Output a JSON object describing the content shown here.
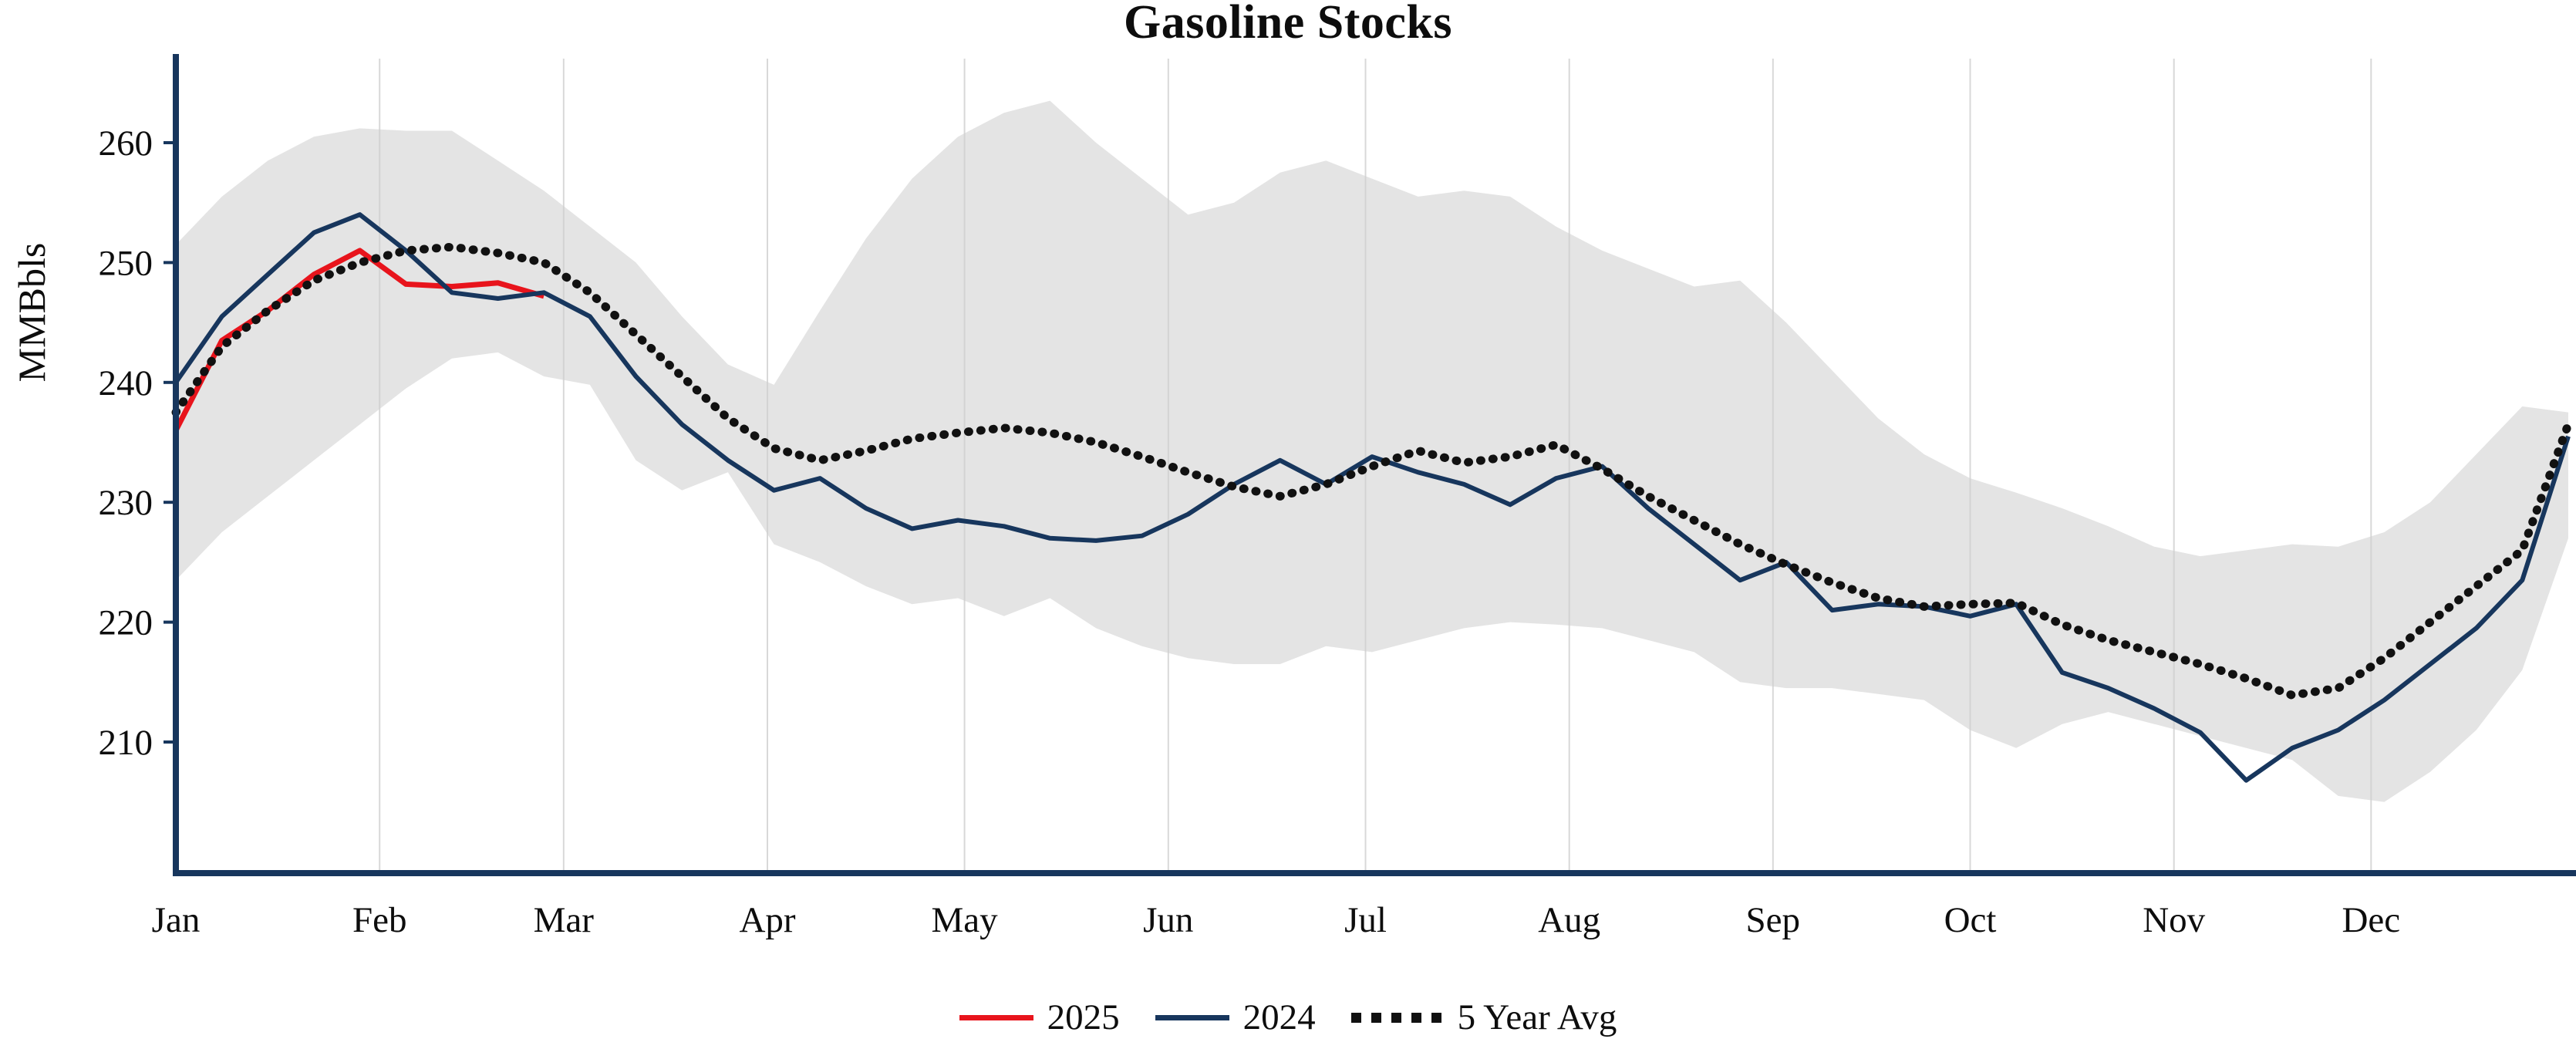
{
  "figure": {
    "title": "Gasoline Stocks",
    "y_axis_label": "MMBbls",
    "axis_color": "#17365d",
    "grid_color": "#cfcfcf",
    "text_color": "#0d0d0d"
  },
  "legend": {
    "items": [
      {
        "label": "2025",
        "color": "#e8141c",
        "style": "solid"
      },
      {
        "label": "2024",
        "color": "#17365d",
        "style": "solid"
      },
      {
        "label": "5 Year Avg",
        "color": "#111111",
        "style": "dotted"
      }
    ]
  },
  "chart_data": {
    "type": "line",
    "title": "Gasoline Stocks",
    "xlabel": "",
    "ylabel": "MMBbls",
    "ylim": [
      204,
      267
    ],
    "yticks": [
      210,
      220,
      230,
      240,
      250,
      260
    ],
    "x_unit": "week_of_year",
    "weeks_total": 53,
    "months": [
      "Jan",
      "Feb",
      "Mar",
      "Apr",
      "May",
      "Jun",
      "Jul",
      "Aug",
      "Sep",
      "Oct",
      "Nov",
      "Dec"
    ],
    "month_start_days": [
      1,
      32,
      60,
      91,
      121,
      152,
      182,
      213,
      244,
      274,
      305,
      335
    ],
    "grid": "vertical-month-lines",
    "legend_position": "bottom-center",
    "band": {
      "name": "5-year range",
      "color": "#e4e4e4",
      "upper": [
        251.5,
        255.5,
        258.5,
        260.5,
        261.2,
        261.0,
        261.0,
        258.5,
        256.0,
        253.0,
        250.0,
        245.5,
        241.5,
        239.8,
        246.0,
        252.0,
        257.0,
        260.5,
        262.5,
        263.5,
        260.0,
        257.0,
        254.0,
        255.0,
        257.5,
        258.5,
        257.0,
        255.5,
        256.0,
        255.5,
        253.0,
        251.0,
        249.5,
        248.0,
        248.5,
        245.0,
        241.0,
        237.0,
        234.0,
        232.0,
        230.8,
        229.5,
        228.0,
        226.3,
        225.5,
        226.0,
        226.5,
        226.3,
        227.5,
        230.0,
        234.0,
        238.0,
        237.5
      ],
      "lower": [
        223.5,
        227.5,
        230.5,
        233.5,
        236.5,
        239.5,
        242.0,
        242.5,
        240.5,
        239.8,
        233.5,
        231.0,
        232.5,
        226.5,
        225.0,
        223.0,
        221.5,
        222.0,
        220.5,
        222.0,
        219.5,
        218.0,
        217.0,
        216.5,
        216.5,
        218.0,
        217.5,
        218.5,
        219.5,
        220.0,
        219.8,
        219.5,
        218.5,
        217.5,
        215.0,
        214.5,
        214.5,
        214.0,
        213.5,
        211.0,
        209.5,
        211.5,
        212.5,
        211.5,
        210.5,
        209.5,
        208.5,
        205.5,
        205.0,
        207.5,
        211.0,
        216.0,
        227.0
      ]
    },
    "series": [
      {
        "name": "2025",
        "color": "#e8141c",
        "style": "solid",
        "stroke_width": 7,
        "start_week": 1,
        "values": [
          236.0,
          243.5,
          246.0,
          249.0,
          251.0,
          248.2,
          248.0,
          248.3,
          247.2
        ]
      },
      {
        "name": "2024",
        "color": "#17365d",
        "style": "solid",
        "stroke_width": 6,
        "start_week": 1,
        "values": [
          240.0,
          245.5,
          249.0,
          252.5,
          254.0,
          251.0,
          247.5,
          247.0,
          247.5,
          245.5,
          240.5,
          236.5,
          233.5,
          231.0,
          232.0,
          229.5,
          227.8,
          228.5,
          228.0,
          227.0,
          226.8,
          227.2,
          229.0,
          231.5,
          233.5,
          231.5,
          233.8,
          232.5,
          231.5,
          229.8,
          232.0,
          233.0,
          229.5,
          226.5,
          223.5,
          225.0,
          221.0,
          221.5,
          221.3,
          220.5,
          221.5,
          215.8,
          214.5,
          212.8,
          210.8,
          206.8,
          209.5,
          211.0,
          213.5,
          216.5,
          219.5,
          223.5,
          235.5
        ]
      },
      {
        "name": "5 Year Avg",
        "color": "#111111",
        "style": "dotted",
        "stroke_width": 11,
        "start_week": 1,
        "values": [
          237.5,
          243.0,
          246.0,
          248.5,
          250.0,
          251.0,
          251.3,
          250.8,
          250.0,
          247.5,
          244.0,
          240.5,
          237.0,
          234.5,
          233.5,
          234.3,
          235.3,
          235.8,
          236.2,
          235.8,
          235.0,
          233.8,
          232.5,
          231.3,
          230.5,
          231.5,
          233.0,
          234.3,
          233.3,
          233.8,
          234.8,
          232.8,
          230.5,
          228.5,
          226.5,
          224.8,
          223.3,
          222.0,
          221.3,
          221.5,
          221.6,
          219.8,
          218.5,
          217.5,
          216.5,
          215.3,
          213.9,
          214.5,
          217.0,
          220.0,
          223.0,
          226.0,
          236.5
        ]
      }
    ]
  }
}
